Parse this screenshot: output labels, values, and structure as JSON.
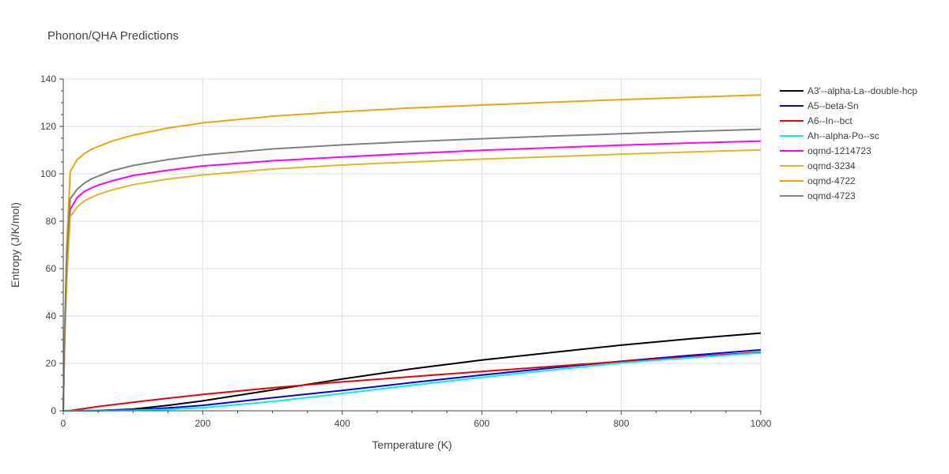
{
  "chart_data": {
    "type": "line",
    "title": "Phonon/QHA Predictions",
    "xlabel": "Temperature (K)",
    "ylabel": "Entropy (J/K/mol)",
    "xlim": [
      0,
      1000
    ],
    "ylim": [
      0,
      140
    ],
    "xticks": [
      0,
      200,
      400,
      600,
      800,
      1000
    ],
    "yticks": [
      0,
      20,
      40,
      60,
      80,
      100,
      120,
      140
    ],
    "grid": true,
    "legend_position": "right",
    "series": [
      {
        "name": "A3'--alpha-La--double-hcp",
        "color": "#000000",
        "x": [
          0,
          50,
          100,
          150,
          200,
          300,
          400,
          500,
          600,
          700,
          800,
          900,
          1000
        ],
        "y": [
          0,
          0.1,
          0.7,
          2.3,
          4.2,
          8.8,
          13.4,
          17.7,
          21.4,
          24.6,
          27.7,
          30.4,
          32.8
        ]
      },
      {
        "name": "A5--beta-Sn",
        "color": "#0000ee",
        "x": [
          0,
          50,
          100,
          150,
          200,
          300,
          400,
          500,
          600,
          700,
          800,
          900,
          1000
        ],
        "y": [
          0,
          0.1,
          0.4,
          1.2,
          2.3,
          5.5,
          8.6,
          11.9,
          15.1,
          18.1,
          20.9,
          23.4,
          25.7
        ]
      },
      {
        "name": "A6--In--bct",
        "color": "#ee0000",
        "x": [
          0,
          10,
          50,
          100,
          150,
          200,
          300,
          400,
          500,
          600,
          700,
          800,
          900,
          1000
        ],
        "y": [
          0,
          0.1,
          1.8,
          3.6,
          5.3,
          6.9,
          9.7,
          12.2,
          14.4,
          16.6,
          18.7,
          20.8,
          22.8,
          24.7
        ]
      },
      {
        "name": "Ah--alpha-Po--sc",
        "color": "#00eeee",
        "x": [
          0,
          50,
          100,
          150,
          200,
          300,
          400,
          500,
          600,
          700,
          800,
          900,
          1000
        ],
        "y": [
          0,
          0.05,
          0.2,
          0.6,
          1.3,
          3.9,
          7.3,
          10.8,
          14.1,
          17.2,
          20.2,
          22.4,
          24.4
        ]
      },
      {
        "name": "oqmd-1214723",
        "color": "#ff00ff",
        "x": [
          0,
          2,
          5,
          10,
          20,
          30,
          40,
          50,
          70,
          100,
          150,
          200,
          300,
          400,
          500,
          600,
          700,
          800,
          900,
          1000
        ],
        "y": [
          0,
          30,
          60,
          85,
          90,
          92.5,
          94,
          95.2,
          97,
          99.3,
          101.5,
          103.3,
          105.5,
          107.1,
          108.6,
          109.9,
          111,
          112.1,
          113,
          113.8
        ]
      },
      {
        "name": "oqmd-3234",
        "color": "#e6b422",
        "x": [
          0,
          2,
          5,
          10,
          20,
          30,
          40,
          50,
          70,
          100,
          150,
          200,
          300,
          400,
          500,
          600,
          700,
          800,
          900,
          1000
        ],
        "y": [
          0,
          28,
          55,
          82,
          86,
          88.5,
          90,
          91.3,
          93.2,
          95.4,
          97.8,
          99.5,
          102,
          103.7,
          105,
          106.2,
          107.2,
          108.3,
          109.2,
          110.1
        ]
      },
      {
        "name": "oqmd-4722",
        "color": "#f0a30a",
        "x": [
          0,
          2,
          5,
          10,
          20,
          30,
          40,
          50,
          70,
          100,
          150,
          200,
          300,
          400,
          500,
          600,
          700,
          800,
          900,
          1000
        ],
        "y": [
          0,
          35,
          70,
          101,
          106,
          108.5,
          110.3,
          111.5,
          113.8,
          116.3,
          119.3,
          121.5,
          124.3,
          126.2,
          127.8,
          129,
          130.2,
          131.3,
          132.3,
          133.3
        ]
      },
      {
        "name": "oqmd-4723",
        "color": "#808080",
        "x": [
          0,
          2,
          5,
          10,
          20,
          30,
          40,
          50,
          70,
          100,
          150,
          200,
          300,
          400,
          500,
          600,
          700,
          800,
          900,
          1000
        ],
        "y": [
          0,
          32,
          65,
          89.5,
          93.5,
          96,
          97.8,
          99,
          101.3,
          103.5,
          106,
          107.9,
          110.5,
          112.2,
          113.6,
          114.8,
          115.9,
          116.9,
          117.9,
          118.8
        ]
      }
    ]
  }
}
